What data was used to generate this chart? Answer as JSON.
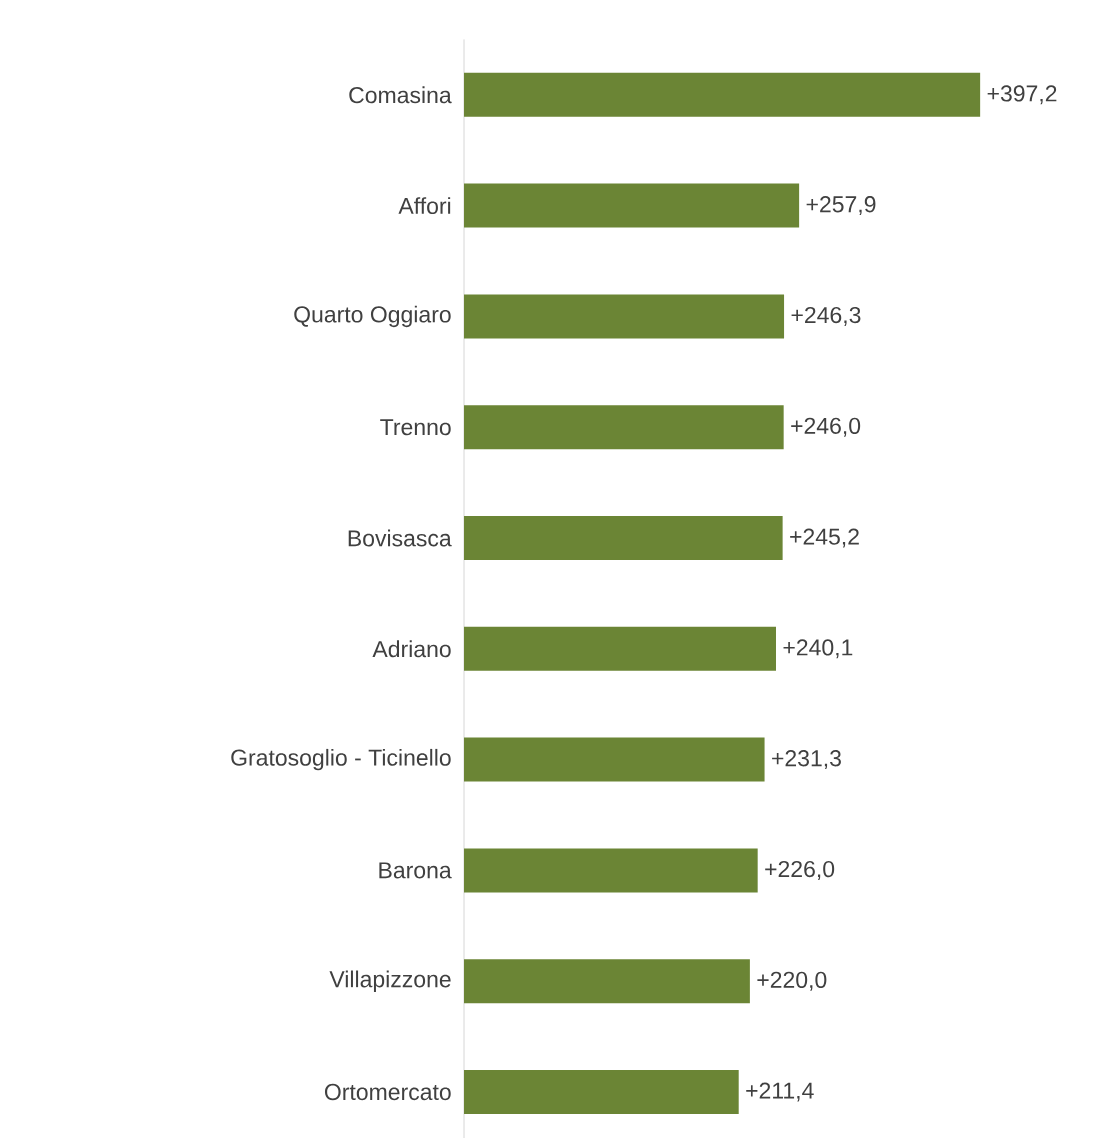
{
  "chart_data": {
    "type": "bar",
    "orientation": "horizontal",
    "color": "#6b8535",
    "categories": [
      "Comasina",
      "Affori",
      "Quarto Oggiaro",
      "Trenno",
      "Bovisasca",
      "Adriano",
      "Gratosoglio - Ticinello",
      "Barona",
      "Villapizzone",
      "Ortomercato"
    ],
    "values": [
      397.2,
      257.9,
      246.3,
      246.0,
      245.2,
      240.1,
      231.3,
      226.0,
      220.0,
      211.4
    ],
    "value_labels": [
      "+397,2",
      "+257,9",
      "+246,3",
      "+246,0",
      "+245,2",
      "+240,1",
      "+231,3",
      "+226,0",
      "+220,0",
      "+211,4"
    ]
  }
}
